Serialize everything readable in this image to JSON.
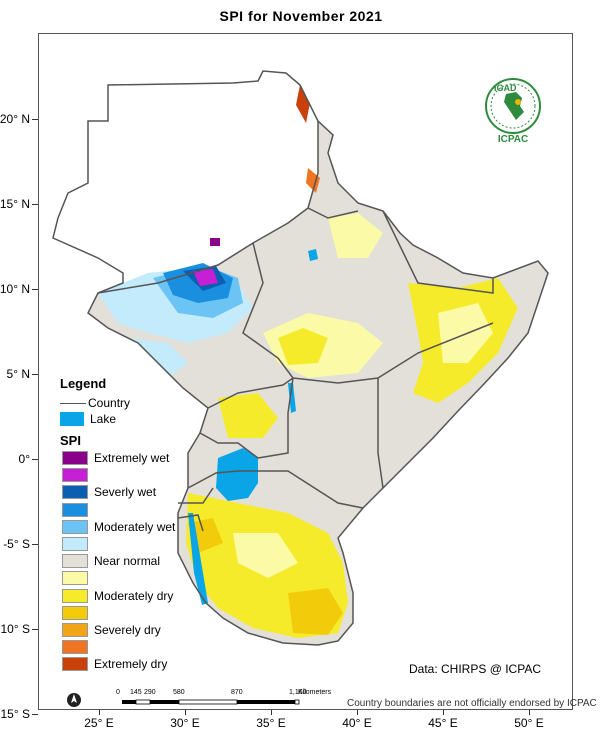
{
  "map": {
    "title": "SPI   for   November 2021",
    "lat_ticks": [
      {
        "label": "20° N",
        "lat": 20
      },
      {
        "label": "15° N",
        "lat": 15
      },
      {
        "label": "10° N",
        "lat": 10
      },
      {
        "label": "5° N",
        "lat": 5
      },
      {
        "label": "0°",
        "lat": 0
      },
      {
        "label": "-5° S",
        "lat": -5
      },
      {
        "label": "-10° S",
        "lat": -10
      },
      {
        "label": "-15° S",
        "lat": -15
      }
    ],
    "lon_ticks": [
      {
        "label": "25° E",
        "lon": 25
      },
      {
        "label": "30° E",
        "lon": 30
      },
      {
        "label": "35° E",
        "lon": 35
      },
      {
        "label": "40° E",
        "lon": 40
      },
      {
        "label": "45° E",
        "lon": 45
      },
      {
        "label": "50° E",
        "lon": 50
      }
    ]
  },
  "legend": {
    "title": "Legend",
    "country_label": "Country",
    "lake_label": "Lake",
    "lake_color": "#0aa5e6",
    "spi_title": "SPI",
    "classes": [
      {
        "label": "Extremely wet",
        "color": "#8b008b"
      },
      {
        "label": "",
        "color": "#c71fd6"
      },
      {
        "label": "Severly wet",
        "color": "#0a5fb0"
      },
      {
        "label": "",
        "color": "#1a8fe0"
      },
      {
        "label": "Moderately wet",
        "color": "#6cc4f5"
      },
      {
        "label": "",
        "color": "#c3ebfb"
      },
      {
        "label": "Near normal",
        "color": "#e3e0da"
      },
      {
        "label": "",
        "color": "#fbfaa6"
      },
      {
        "label": "Moderately dry",
        "color": "#f6eb2a"
      },
      {
        "label": "",
        "color": "#f2cc0a"
      },
      {
        "label": "Severely dry",
        "color": "#f2a418"
      },
      {
        "label": "",
        "color": "#f07522"
      },
      {
        "label": "Extremely dry",
        "color": "#c8400a"
      }
    ]
  },
  "logo": {
    "text_top": "IGAD",
    "text_bottom": "ICPAC"
  },
  "scalebar": {
    "labels": [
      "0",
      "145",
      "290",
      "580",
      "870",
      "1,160"
    ],
    "unit": "Kilometers"
  },
  "credit": "Data: CHIRPS @ ICPAC",
  "disclaimer": "Country boundaries are not officially endorsed by ICPAC"
}
